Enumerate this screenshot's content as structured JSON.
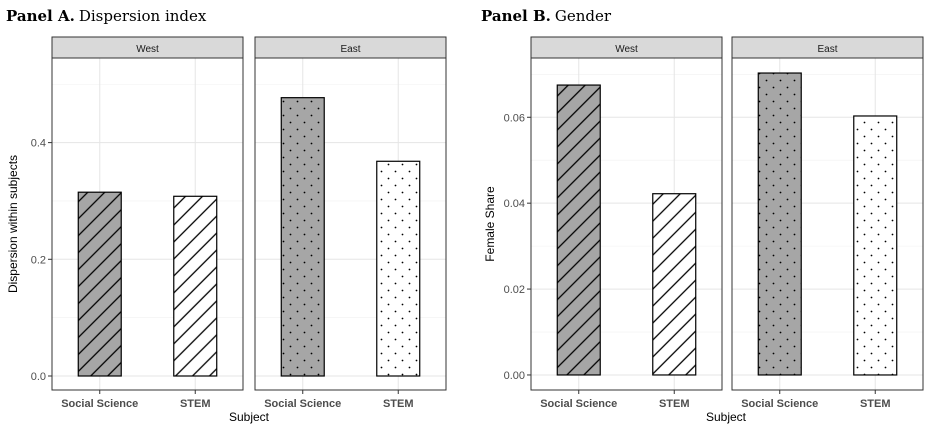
{
  "panels": [
    {
      "label_bold": "Panel A.",
      "label_text": "Dispersion index"
    },
    {
      "label_bold": "Panel B.",
      "label_text": "Gender"
    }
  ],
  "chart_data": [
    {
      "type": "bar",
      "title": "",
      "xlabel": "Subject",
      "ylabel": "Dispersion within subjects",
      "facets": [
        "West",
        "East"
      ],
      "categories": [
        "Social Science",
        "STEM"
      ],
      "series": [
        {
          "facet": "West",
          "values": [
            0.315,
            0.308
          ]
        },
        {
          "facet": "East",
          "values": [
            0.477,
            0.368
          ]
        }
      ],
      "yticks": [
        "0.0",
        "0.2",
        "0.4"
      ],
      "ylim": [
        -0.024,
        0.545
      ],
      "grid": true,
      "fills": {
        "West": {
          "Social Science": "hatch-grey",
          "STEM": "hatch-white"
        },
        "East": {
          "Social Science": "dots-grey",
          "STEM": "dots-white"
        }
      }
    },
    {
      "type": "bar",
      "title": "",
      "xlabel": "Subject",
      "ylabel": "Female Share",
      "facets": [
        "West",
        "East"
      ],
      "categories": [
        "Social Science",
        "STEM"
      ],
      "series": [
        {
          "facet": "West",
          "values": [
            0.0675,
            0.0422
          ]
        },
        {
          "facet": "East",
          "values": [
            0.0703,
            0.0603
          ]
        }
      ],
      "yticks": [
        "0.00",
        "0.02",
        "0.04",
        "0.06"
      ],
      "ylim": [
        -0.0035,
        0.0738
      ],
      "grid": true,
      "fills": {
        "West": {
          "Social Science": "hatch-grey",
          "STEM": "hatch-white"
        },
        "East": {
          "Social Science": "dots-grey",
          "STEM": "dots-white"
        }
      }
    }
  ]
}
